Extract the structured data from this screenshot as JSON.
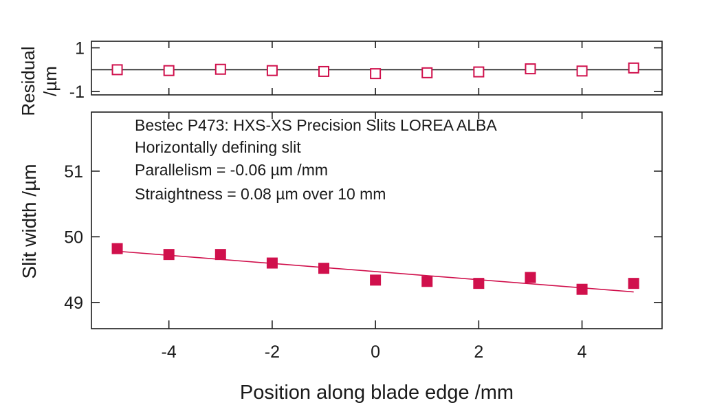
{
  "chart_data": {
    "type": "scatter",
    "x": [
      -5,
      -4,
      -3,
      -2,
      -1,
      0,
      1,
      2,
      3,
      4,
      5
    ],
    "panels": {
      "residual": {
        "ylabel_line1": "Residual",
        "ylabel_line2": "/µm",
        "ylim": [
          -1.15,
          1.3
        ],
        "yticks": [
          1,
          -1
        ],
        "ytick_labels": [
          "1",
          "-1"
        ],
        "values": [
          0.0,
          -0.04,
          0.02,
          -0.04,
          -0.08,
          -0.18,
          -0.14,
          -0.1,
          0.04,
          -0.06,
          0.08
        ],
        "zero_line": 0,
        "marker": "open-square"
      },
      "main": {
        "ylabel": "Slit width /µm",
        "ylim": [
          48.6,
          51.9
        ],
        "yticks": [
          49,
          50,
          51
        ],
        "ytick_labels": [
          "49",
          "50",
          "51"
        ],
        "values": [
          49.82,
          49.73,
          49.73,
          49.6,
          49.52,
          49.34,
          49.32,
          49.29,
          49.38,
          49.2,
          49.29
        ],
        "fit": {
          "x": [
            -5,
            5
          ],
          "y": [
            49.78,
            49.16
          ]
        },
        "marker": "filled-square"
      }
    },
    "xlabel": "Position along blade edge /mm",
    "xlim": [
      -5.5,
      5.55
    ],
    "xticks": [
      -4,
      -2,
      0,
      2,
      4
    ],
    "xtick_labels": [
      "-4",
      "-2",
      "0",
      "2",
      "4"
    ],
    "annotations": [
      "Bestec P473: HXS-XS Precision Slits LOREA ALBA",
      "Horizontally defining slit",
      "Parallelism =  -0.06 µm /mm",
      "Straightness = 0.08 µm over 10 mm"
    ],
    "colors": {
      "series": "#d0104c",
      "axis": "#1a1a1a"
    }
  }
}
